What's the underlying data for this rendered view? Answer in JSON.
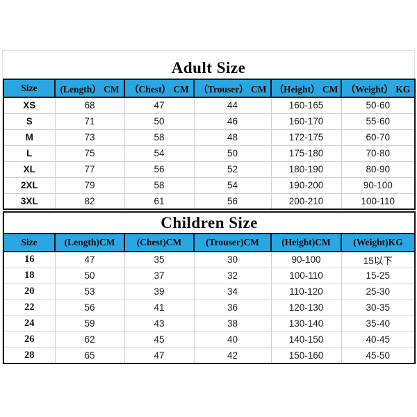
{
  "colors": {
    "header_cyan": "#2AA7E2",
    "table_border": "#161616",
    "grid_line": "#C9D2DA",
    "background": "#FFFFFF"
  },
  "adult": {
    "title": "Adult Size",
    "headers": [
      "Size",
      "(Length） CM",
      "（Chest） CM",
      "（Trouser） CM",
      "（Height） CM",
      "（Weight） KG"
    ],
    "rows": [
      [
        "XS",
        "68",
        "47",
        "44",
        "160-165",
        "50-60"
      ],
      [
        "S",
        "71",
        "50",
        "46",
        "160-170",
        "55-60"
      ],
      [
        "M",
        "73",
        "58",
        "48",
        "172-175",
        "60-70"
      ],
      [
        "L",
        "75",
        "54",
        "50",
        "175-180",
        "70-80"
      ],
      [
        "XL",
        "77",
        "56",
        "52",
        "180-190",
        "80-90"
      ],
      [
        "2XL",
        "79",
        "58",
        "54",
        "190-200",
        "90-100"
      ],
      [
        "3XL",
        "82",
        "61",
        "56",
        "200-210",
        "100-110"
      ]
    ]
  },
  "children": {
    "title": "Children Size",
    "headers": [
      "Size",
      "(Length)CM",
      "(Chest)CM",
      "(Trouser)CM",
      "(Height)CM",
      "(Weight)KG"
    ],
    "rows": [
      [
        "16",
        "47",
        "35",
        "30",
        "90-100",
        "15以下"
      ],
      [
        "18",
        "50",
        "37",
        "32",
        "100-110",
        "15-25"
      ],
      [
        "20",
        "53",
        "39",
        "34",
        "110-120",
        "25-30"
      ],
      [
        "22",
        "56",
        "41",
        "36",
        "120-130",
        "30-35"
      ],
      [
        "24",
        "59",
        "43",
        "38",
        "130-140",
        "35-40"
      ],
      [
        "26",
        "62",
        "45",
        "40",
        "140-150",
        "40-45"
      ],
      [
        "28",
        "65",
        "47",
        "42",
        "150-160",
        "45-50"
      ]
    ]
  }
}
